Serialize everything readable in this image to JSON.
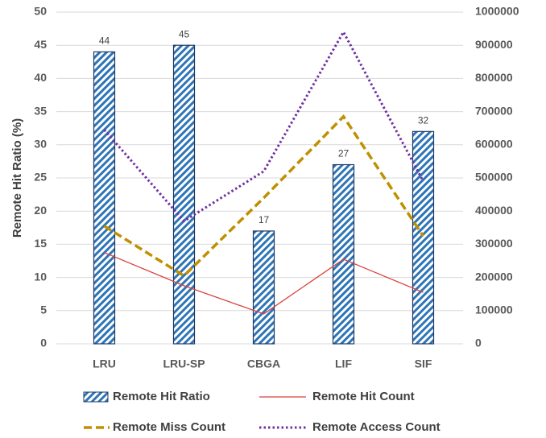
{
  "chart_data": {
    "type": "bar",
    "y_label": "Remote Hit Ratio (%)",
    "categories": [
      "LRU",
      "LRU-SP",
      "CBGA",
      "LIF",
      "SIF"
    ],
    "series": [
      {
        "name": "Remote Hit Ratio",
        "type": "bar",
        "color": "#2e75b6",
        "values": [
          44,
          45,
          17,
          27,
          32
        ]
      },
      {
        "name": "Remote Hit Count",
        "type": "line",
        "axis": "y2",
        "dash": "solid",
        "color": "#d9413e",
        "values": [
          275000,
          175000,
          90000,
          255000,
          155000
        ]
      },
      {
        "name": "Remote Miss Count",
        "type": "line",
        "axis": "y2",
        "dash": "dashed",
        "color": "#bf9000",
        "values": [
          355000,
          205000,
          440000,
          685000,
          325000
        ]
      },
      {
        "name": "Remote Access Count",
        "type": "line",
        "axis": "y2",
        "dash": "dotted",
        "color": "#7030a0",
        "values": [
          645000,
          370000,
          520000,
          940000,
          490000
        ]
      }
    ],
    "ylim": [
      0,
      50
    ],
    "yticks": [
      0,
      5,
      10,
      15,
      20,
      25,
      30,
      35,
      40,
      45,
      50
    ],
    "y2lim": [
      0,
      1000000
    ],
    "y2ticks": [
      0,
      100000,
      200000,
      300000,
      400000,
      500000,
      600000,
      700000,
      800000,
      900000,
      1000000
    ],
    "grid": true,
    "legend": "bottom"
  }
}
